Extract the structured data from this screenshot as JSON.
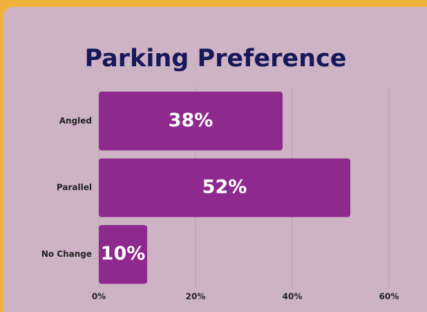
{
  "chart_data": {
    "type": "bar",
    "orientation": "horizontal",
    "title": "Parking Preference",
    "categories": [
      "Angled",
      "Parallel",
      "No Change"
    ],
    "values": [
      38,
      52,
      10
    ],
    "value_labels": [
      "38%",
      "52%",
      "10%"
    ],
    "color": "#8e2a8e",
    "xlim": [
      0,
      60
    ],
    "xticks": [
      {
        "value": 0,
        "label": "0%"
      },
      {
        "value": 20,
        "label": "20%"
      },
      {
        "value": 40,
        "label": "40%"
      },
      {
        "value": 60,
        "label": "60%"
      }
    ],
    "grid": true
  }
}
